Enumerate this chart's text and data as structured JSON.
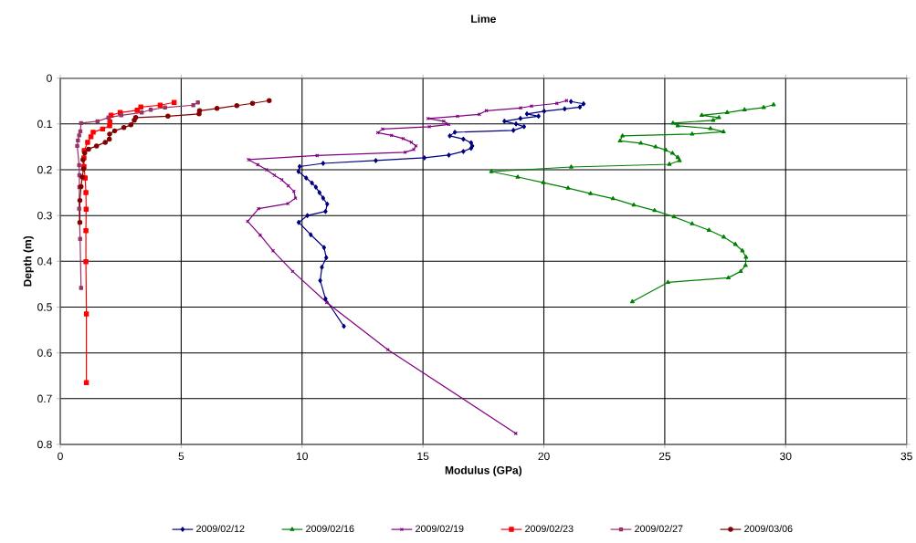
{
  "chart_data": {
    "type": "line",
    "title": "Lime",
    "xlabel": "Modulus (GPa)",
    "ylabel": "Depth (m)",
    "xlim": [
      0,
      35
    ],
    "xticks": [
      0,
      5,
      10,
      15,
      20,
      25,
      30,
      35
    ],
    "ylim": [
      0.8,
      0
    ],
    "yticks": [
      0,
      0.1,
      0.2,
      0.3,
      0.4,
      0.5,
      0.6,
      0.7,
      0.8
    ],
    "grid": true,
    "legend": "bottom",
    "series": [
      {
        "name": "2009/02/12",
        "color": "#000080",
        "marker": "diamond",
        "x": [
          21.12,
          21.64,
          21.49,
          20.86,
          20.01,
          19.3,
          19.78,
          19.03,
          18.37,
          18.85,
          19.18,
          18.74,
          16.32,
          16.11,
          16.67,
          16.99,
          17.04,
          16.99,
          16.67,
          16.07,
          15.06,
          13.05,
          10.87,
          9.9,
          9.85,
          10.17,
          10.41,
          10.57,
          10.72,
          10.87,
          11.04,
          10.97,
          10.22,
          9.86,
          10.36,
          10.91,
          11.0,
          10.82,
          10.75,
          10.97,
          11.73
        ],
        "values": [
          0.051,
          0.056,
          0.063,
          0.067,
          0.072,
          0.078,
          0.083,
          0.088,
          0.094,
          0.1,
          0.106,
          0.114,
          0.118,
          0.126,
          0.133,
          0.141,
          0.148,
          0.153,
          0.16,
          0.168,
          0.174,
          0.18,
          0.186,
          0.193,
          0.204,
          0.218,
          0.229,
          0.238,
          0.25,
          0.262,
          0.275,
          0.291,
          0.3,
          0.315,
          0.342,
          0.37,
          0.392,
          0.413,
          0.442,
          0.482,
          0.542
        ]
      },
      {
        "name": "2009/02/16",
        "color": "#008000",
        "marker": "triangle",
        "x": [
          29.5,
          29.09,
          28.3,
          27.58,
          26.53,
          27.24,
          27.0,
          25.34,
          25.54,
          26.89,
          27.43,
          26.13,
          23.25,
          23.15,
          24.01,
          24.62,
          25.04,
          25.32,
          25.54,
          25.61,
          25.19,
          21.13,
          17.83,
          18.92,
          19.98,
          21.0,
          21.93,
          22.86,
          23.72,
          24.58,
          25.38,
          26.13,
          26.83,
          27.44,
          27.92,
          28.21,
          28.36,
          28.34,
          28.14,
          27.63,
          25.13,
          23.66
        ],
        "values": [
          0.058,
          0.064,
          0.069,
          0.075,
          0.081,
          0.086,
          0.092,
          0.098,
          0.104,
          0.11,
          0.117,
          0.122,
          0.126,
          0.137,
          0.142,
          0.15,
          0.157,
          0.164,
          0.173,
          0.18,
          0.188,
          0.194,
          0.204,
          0.216,
          0.228,
          0.24,
          0.252,
          0.263,
          0.277,
          0.289,
          0.303,
          0.318,
          0.332,
          0.347,
          0.363,
          0.377,
          0.391,
          0.409,
          0.422,
          0.436,
          0.446,
          0.488
        ]
      },
      {
        "name": "2009/02/19",
        "color": "#800080",
        "marker": "cross",
        "x": [
          20.94,
          20.54,
          19.49,
          19.04,
          17.62,
          17.33,
          16.43,
          15.21,
          15.86,
          16.07,
          15.26,
          13.33,
          13.13,
          13.7,
          14.18,
          14.52,
          14.71,
          14.62,
          14.26,
          10.62,
          7.78,
          8.17,
          8.53,
          8.85,
          9.16,
          9.43,
          9.66,
          9.73,
          9.41,
          8.2,
          7.75,
          8.27,
          8.8,
          9.61,
          11.02,
          13.55,
          18.84
        ],
        "values": [
          0.049,
          0.055,
          0.061,
          0.065,
          0.071,
          0.079,
          0.083,
          0.088,
          0.094,
          0.101,
          0.106,
          0.111,
          0.119,
          0.125,
          0.132,
          0.14,
          0.148,
          0.156,
          0.162,
          0.169,
          0.178,
          0.189,
          0.2,
          0.212,
          0.222,
          0.235,
          0.247,
          0.262,
          0.274,
          0.285,
          0.313,
          0.343,
          0.377,
          0.422,
          0.49,
          0.593,
          0.776
        ]
      },
      {
        "name": "2009/02/23",
        "color": "#ff0000",
        "marker": "square",
        "x": [
          4.71,
          4.13,
          3.33,
          3.18,
          2.48,
          2.1,
          2.05,
          2.04,
          1.75,
          1.36,
          1.27,
          1.13,
          0.99,
          0.98,
          0.98,
          1.03,
          1.06,
          1.07,
          1.06,
          1.06,
          1.08,
          1.08
        ],
        "values": [
          0.053,
          0.059,
          0.063,
          0.07,
          0.075,
          0.081,
          0.096,
          0.104,
          0.111,
          0.118,
          0.128,
          0.14,
          0.158,
          0.174,
          0.193,
          0.218,
          0.25,
          0.286,
          0.333,
          0.401,
          0.515,
          0.665
        ]
      },
      {
        "name": "2009/02/27",
        "color": "#993366",
        "marker": "square",
        "x": [
          5.69,
          5.5,
          4.33,
          3.74,
          3.37,
          2.52,
          1.99,
          1.54,
          0.86,
          0.83,
          0.78,
          0.73,
          0.7,
          0.78,
          0.79,
          0.79,
          0.78,
          0.82,
          0.86
        ],
        "values": [
          0.053,
          0.059,
          0.064,
          0.069,
          0.075,
          0.081,
          0.086,
          0.094,
          0.098,
          0.116,
          0.125,
          0.136,
          0.148,
          0.19,
          0.212,
          0.238,
          0.285,
          0.351,
          0.458
        ]
      },
      {
        "name": "2009/03/06",
        "color": "#800000",
        "marker": "circle",
        "x": [
          8.64,
          7.95,
          7.3,
          6.48,
          5.76,
          5.74,
          4.45,
          3.12,
          3.06,
          2.92,
          2.63,
          2.25,
          2.04,
          2.03,
          1.86,
          1.5,
          1.17,
          1.01,
          0.94,
          0.96,
          0.91,
          0.86,
          0.81,
          0.81
        ],
        "values": [
          0.049,
          0.055,
          0.06,
          0.066,
          0.071,
          0.078,
          0.083,
          0.086,
          0.092,
          0.102,
          0.108,
          0.115,
          0.122,
          0.133,
          0.14,
          0.148,
          0.155,
          0.163,
          0.178,
          0.198,
          0.216,
          0.237,
          0.267,
          0.315
        ]
      }
    ]
  }
}
